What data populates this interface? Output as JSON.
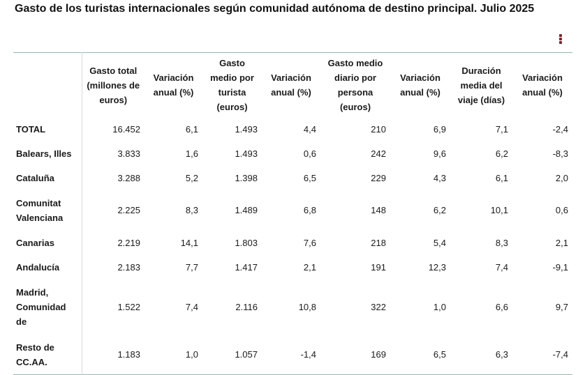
{
  "title": "Gasto de los turistas internacionales según comunidad autónoma de destino principal. Julio 2025",
  "menu_icon": "kebab-menu-icon",
  "accent_color": "#8b1c2b",
  "headers": [
    "",
    "Gasto total (millones de euros)",
    "Variación anual (%)",
    "Gasto medio por turista (euros)",
    "Variación anual (%)",
    "Gasto medio diario por persona (euros)",
    "Variación anual (%)",
    "Duración media del viaje (días)",
    "Variación anual (%)"
  ],
  "rows": [
    {
      "region": "TOTAL",
      "values": [
        "16.452",
        "6,1",
        "1.493",
        "4,4",
        "210",
        "6,9",
        "7,1",
        "-2,4"
      ]
    },
    {
      "region": "Balears, Illes",
      "values": [
        "3.833",
        "1,6",
        "1.493",
        "0,6",
        "242",
        "9,6",
        "6,2",
        "-8,3"
      ]
    },
    {
      "region": "Cataluña",
      "values": [
        "3.288",
        "5,2",
        "1.398",
        "6,5",
        "229",
        "4,3",
        "6,1",
        "2,0"
      ]
    },
    {
      "region": "Comunitat Valenciana",
      "values": [
        "2.225",
        "8,3",
        "1.489",
        "6,8",
        "148",
        "6,2",
        "10,1",
        "0,6"
      ]
    },
    {
      "region": "Canarias",
      "values": [
        "2.219",
        "14,1",
        "1.803",
        "7,6",
        "218",
        "5,4",
        "8,3",
        "2,1"
      ]
    },
    {
      "region": "Andalucía",
      "values": [
        "2.183",
        "7,7",
        "1.417",
        "2,1",
        "191",
        "12,3",
        "7,4",
        "-9,1"
      ]
    },
    {
      "region": "Madrid, Comunidad de",
      "values": [
        "1.522",
        "7,4",
        "2.116",
        "10,8",
        "322",
        "1,0",
        "6,6",
        "9,7"
      ]
    },
    {
      "region": "Resto de CC.AA.",
      "values": [
        "1.183",
        "1,0",
        "1.057",
        "-1,4",
        "169",
        "6,5",
        "6,3",
        "-7,4"
      ]
    }
  ]
}
